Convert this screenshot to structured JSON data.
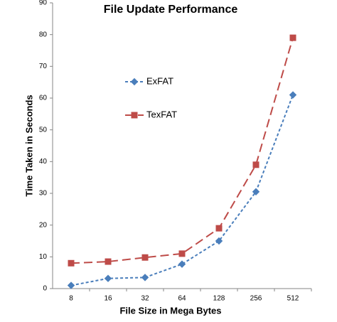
{
  "chart_data": {
    "type": "line",
    "title": "File Update Performance",
    "x_label": "File Size in Mega Bytes",
    "y_label": "Time Taken in Seconds",
    "categories": [
      "8",
      "16",
      "32",
      "64",
      "128",
      "256",
      "512"
    ],
    "series": [
      {
        "name": "ExFAT",
        "color": "#4a7ebb",
        "marker": "diamond",
        "dash": "4,3",
        "values": [
          1,
          3.2,
          3.5,
          7.7,
          15,
          30.5,
          61
        ]
      },
      {
        "name": "TexFAT",
        "color": "#be4b48",
        "marker": "square",
        "dash": "12,6",
        "values": [
          8,
          8.5,
          9.8,
          11,
          19,
          39,
          79
        ]
      }
    ],
    "ylim": [
      0,
      90
    ],
    "yticks": [
      0,
      10,
      20,
      30,
      40,
      50,
      60,
      70,
      80,
      90
    ],
    "grid": false,
    "legend": "upper left"
  }
}
